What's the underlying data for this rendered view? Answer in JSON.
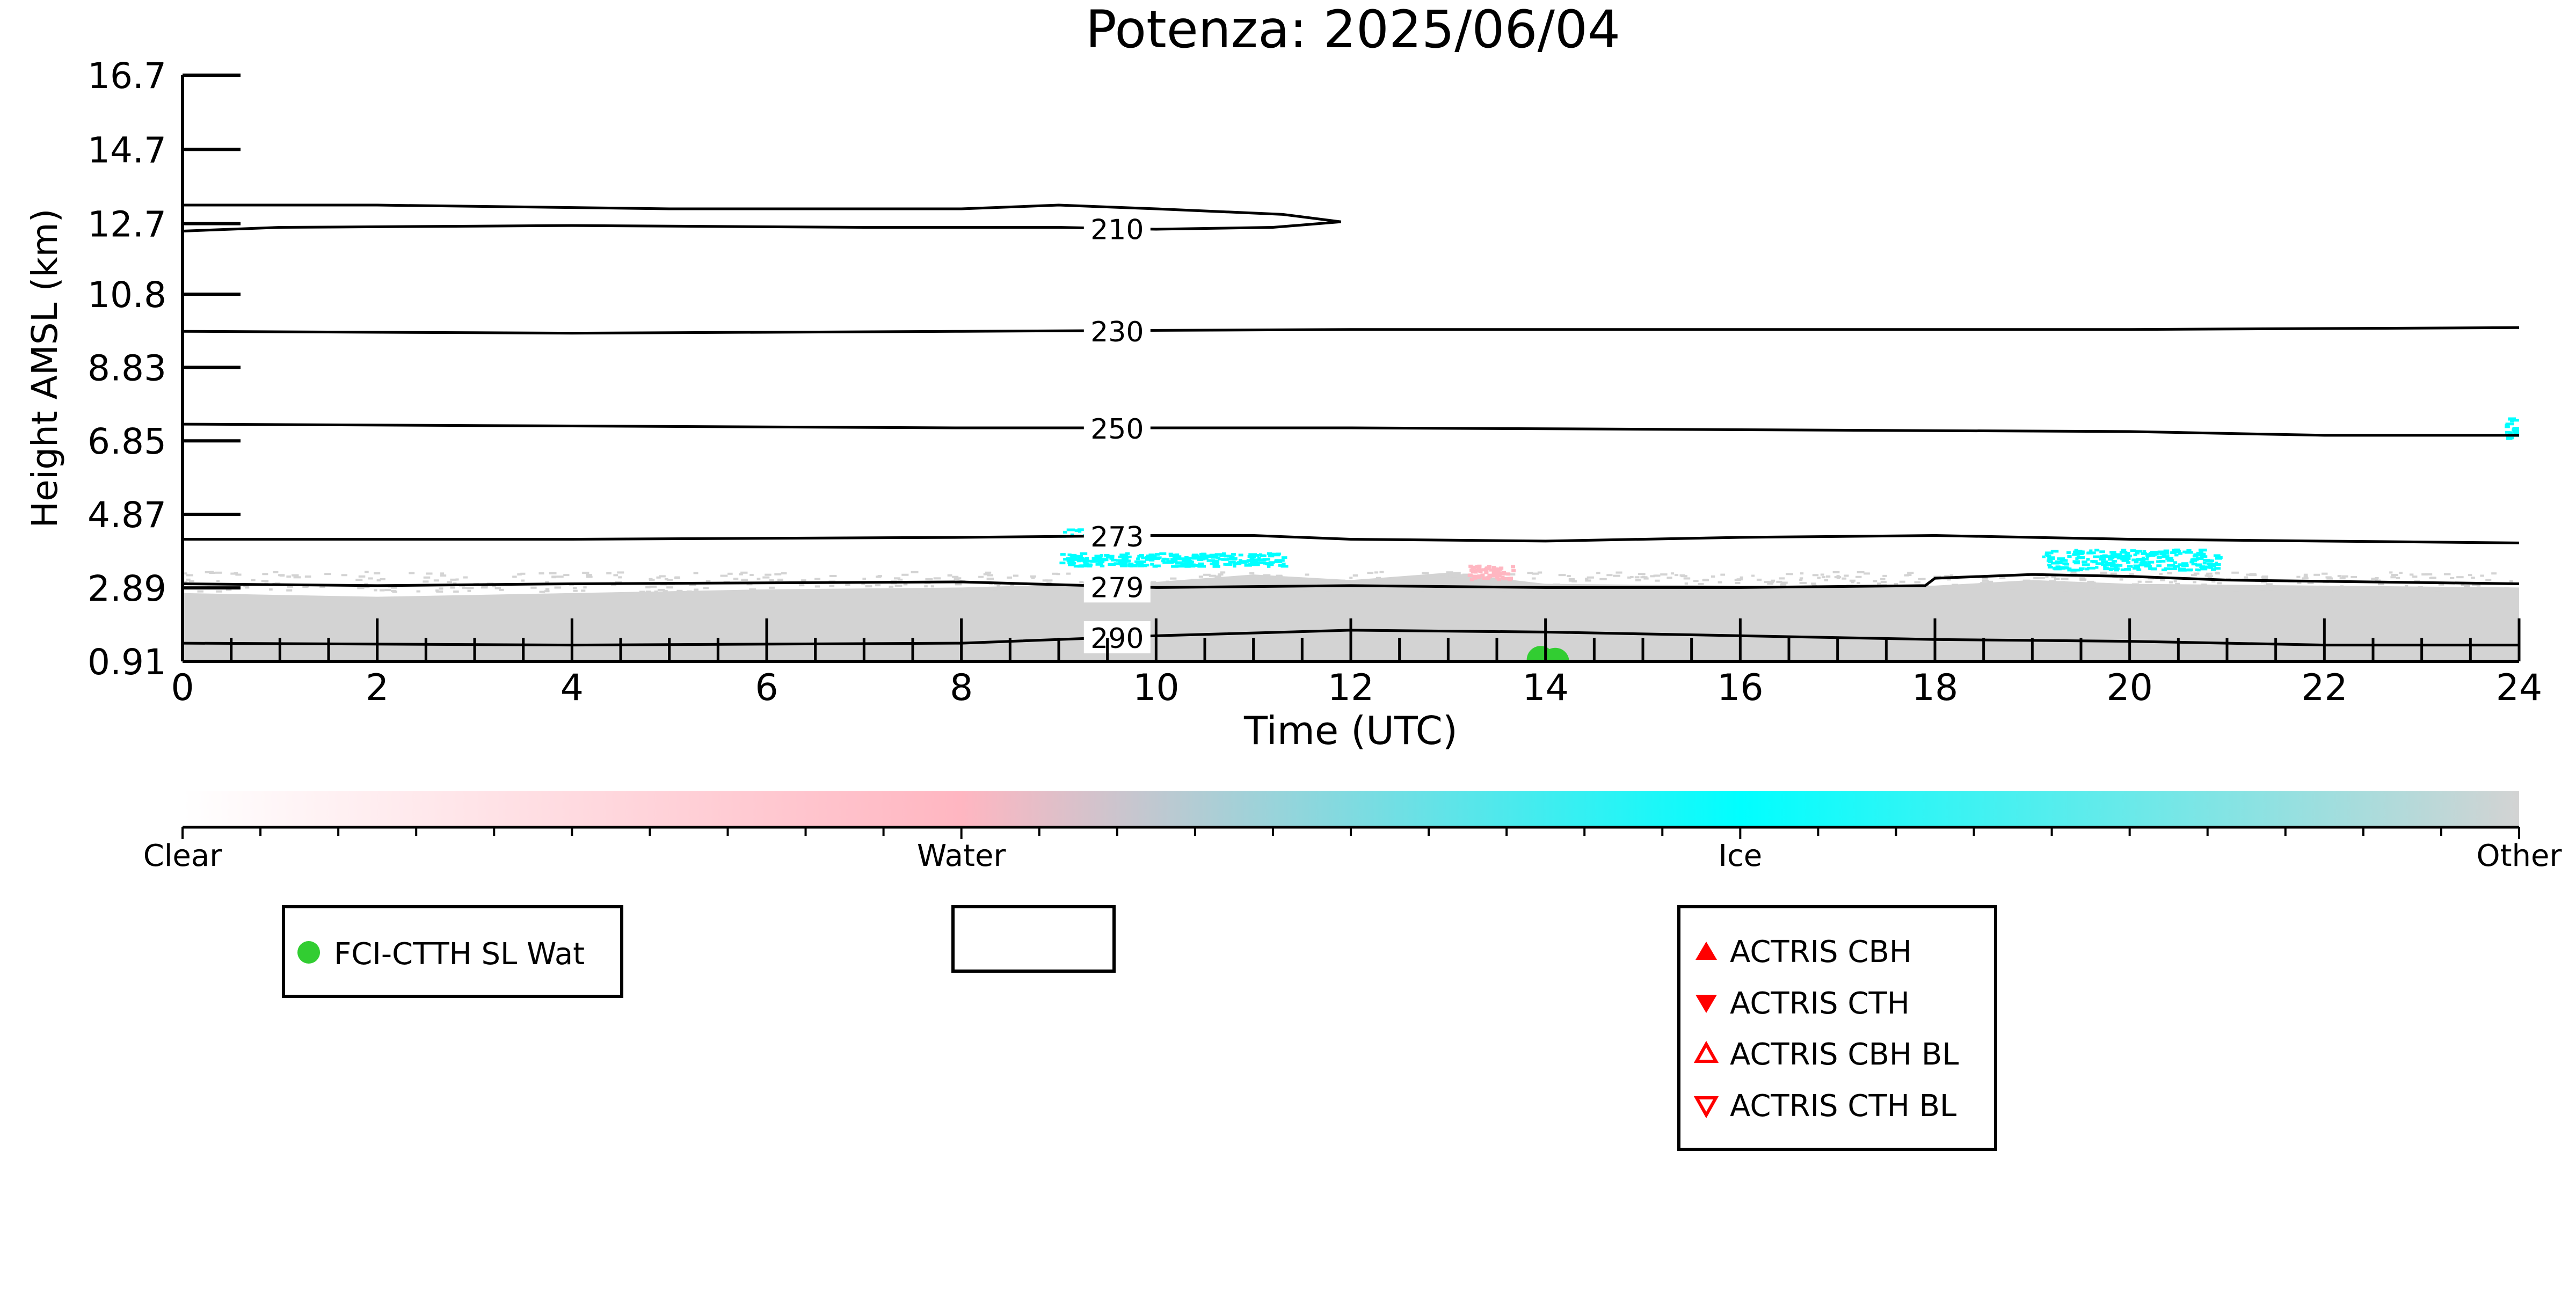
{
  "chart_data": {
    "type": "heatmap",
    "title": "Potenza: 2025/06/04",
    "xlabel": "Time (UTC)",
    "ylabel": "Height AMSL (km)",
    "xlim": [
      0,
      24
    ],
    "ylim": [
      0.91,
      16.7
    ],
    "x_ticks": [
      0,
      2,
      4,
      6,
      8,
      10,
      12,
      14,
      16,
      18,
      20,
      22,
      24
    ],
    "y_ticks": [
      "0.91",
      "2.89",
      "4.87",
      "6.85",
      "8.83",
      "10.8",
      "12.7",
      "14.7",
      "16.7"
    ],
    "y_tick_values": [
      0.91,
      2.89,
      4.87,
      6.85,
      8.83,
      10.8,
      12.7,
      14.7,
      16.7
    ],
    "colorbar": {
      "labels": [
        "Clear",
        "Water",
        "Ice",
        "Other"
      ],
      "colors": [
        "#ffffff",
        "#ffb6c1",
        "#00ffff",
        "#d3d3d3"
      ]
    },
    "class_colors": {
      "water": "#ffb6c1",
      "ice": "#00ffff",
      "other": "#d3d3d3"
    },
    "temperature_contours": [
      {
        "label": "210",
        "label_x": 9.6,
        "upper": [
          [
            0,
            13.2
          ],
          [
            2,
            13.2
          ],
          [
            5,
            13.1
          ],
          [
            8,
            13.1
          ],
          [
            9,
            13.2
          ],
          [
            10,
            13.1
          ],
          [
            11.3,
            12.95
          ],
          [
            11.9,
            12.75
          ]
        ],
        "lower": [
          [
            0,
            12.5
          ],
          [
            1,
            12.6
          ],
          [
            4,
            12.65
          ],
          [
            7,
            12.6
          ],
          [
            9,
            12.6
          ],
          [
            10,
            12.55
          ],
          [
            11.2,
            12.6
          ],
          [
            11.9,
            12.75
          ]
        ]
      },
      {
        "label": "230",
        "label_x": 9.6,
        "points": [
          [
            0,
            9.8
          ],
          [
            4,
            9.75
          ],
          [
            8,
            9.8
          ],
          [
            12,
            9.85
          ],
          [
            16,
            9.85
          ],
          [
            20,
            9.85
          ],
          [
            24,
            9.9
          ]
        ]
      },
      {
        "label": "250",
        "label_x": 9.6,
        "points": [
          [
            0,
            7.3
          ],
          [
            4,
            7.25
          ],
          [
            8,
            7.2
          ],
          [
            12,
            7.2
          ],
          [
            16,
            7.15
          ],
          [
            20,
            7.1
          ],
          [
            22,
            7.0
          ],
          [
            24,
            7.0
          ]
        ]
      },
      {
        "label": "273",
        "label_x": 9.6,
        "points": [
          [
            0,
            4.2
          ],
          [
            4,
            4.2
          ],
          [
            8,
            4.25
          ],
          [
            10,
            4.3
          ],
          [
            11,
            4.3
          ],
          [
            12,
            4.2
          ],
          [
            14,
            4.15
          ],
          [
            16,
            4.25
          ],
          [
            18,
            4.3
          ],
          [
            20,
            4.2
          ],
          [
            24,
            4.1
          ]
        ]
      },
      {
        "label": "279",
        "label_x": 9.6,
        "points": [
          [
            0,
            3.0
          ],
          [
            2,
            2.95
          ],
          [
            4,
            3.0
          ],
          [
            8,
            3.05
          ],
          [
            10,
            2.9
          ],
          [
            12,
            2.95
          ],
          [
            14,
            2.9
          ],
          [
            16,
            2.9
          ],
          [
            17.9,
            2.95
          ],
          [
            18.0,
            3.15
          ],
          [
            19,
            3.25
          ],
          [
            20,
            3.2
          ],
          [
            21,
            3.1
          ],
          [
            24,
            3.0
          ]
        ]
      },
      {
        "label": "290",
        "label_x": 9.6,
        "points": [
          [
            0,
            1.4
          ],
          [
            4,
            1.35
          ],
          [
            8,
            1.4
          ],
          [
            10,
            1.6
          ],
          [
            12,
            1.75
          ],
          [
            14,
            1.7
          ],
          [
            16,
            1.6
          ],
          [
            18,
            1.5
          ],
          [
            20,
            1.45
          ],
          [
            22,
            1.35
          ],
          [
            24,
            1.35
          ]
        ]
      }
    ],
    "fci_ctth_sl_wat": [
      {
        "x": 13.95,
        "y": 0.95
      },
      {
        "x": 14.1,
        "y": 0.9
      }
    ],
    "legends": {
      "left": [
        "FCI-CTTH SL Wat"
      ],
      "middle": [],
      "right": [
        "ACTRIS CBH",
        "ACTRIS CTH",
        "ACTRIS CBH BL",
        "ACTRIS CTH BL"
      ]
    }
  }
}
